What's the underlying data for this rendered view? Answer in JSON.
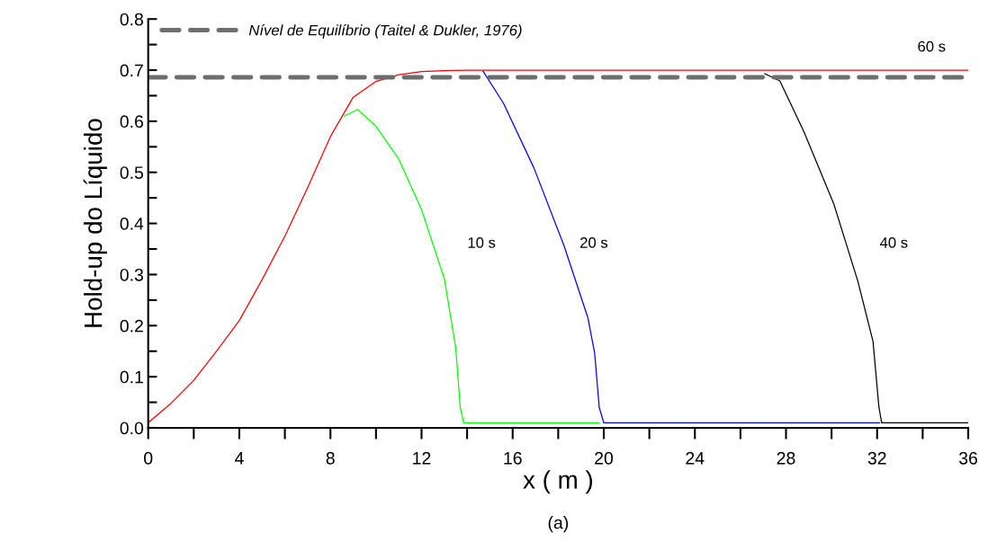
{
  "chart_data": {
    "type": "line",
    "xlabel": "x ( m )",
    "ylabel": "Hold-up do Líquido",
    "annotations": [
      "(a)"
    ],
    "xlim": [
      0,
      36
    ],
    "ylim": [
      0,
      0.8
    ],
    "xticks": [
      0,
      {
        "value": 2,
        "label": null
      },
      4,
      {
        "value": 6,
        "label": null
      },
      8,
      {
        "value": 10,
        "label": null
      },
      12,
      {
        "value": 14,
        "label": null
      },
      16,
      {
        "value": 18,
        "label": null
      },
      20,
      {
        "value": 22,
        "label": null
      },
      24,
      {
        "value": 26,
        "label": null
      },
      28,
      {
        "value": 30,
        "label": null
      },
      32,
      {
        "value": 34,
        "label": null
      },
      36
    ],
    "yticks": [
      {
        "value": 0,
        "label": "0.0"
      },
      {
        "value": 0.05,
        "label": null
      },
      {
        "value": 0.1,
        "label": "0.1"
      },
      {
        "value": 0.15,
        "label": null
      },
      {
        "value": 0.2,
        "label": "0.2"
      },
      {
        "value": 0.25,
        "label": null
      },
      {
        "value": 0.3,
        "label": "0.3"
      },
      {
        "value": 0.35,
        "label": null
      },
      {
        "value": 0.4,
        "label": "0.4"
      },
      {
        "value": 0.45,
        "label": null
      },
      {
        "value": 0.5,
        "label": "0.5"
      },
      {
        "value": 0.55,
        "label": null
      },
      {
        "value": 0.6,
        "label": "0.6"
      },
      {
        "value": 0.65,
        "label": null
      },
      {
        "value": 0.7,
        "label": "0.7"
      },
      {
        "value": 0.75,
        "label": null
      },
      {
        "value": 0.8,
        "label": "0.8"
      }
    ],
    "grid": false,
    "legend": "top left",
    "marker": "none",
    "line_style": "solid",
    "ref_lines": [
      {
        "axis": "y",
        "value": 0.686,
        "label": "Nível de Equilíbrio (Taitel & Dukler, 1976)",
        "color": "#6e6e6e",
        "line_style": "dashed"
      }
    ],
    "series": [
      {
        "name": "10 s",
        "color": "#00ff00",
        "x": [
          8.6,
          9.2,
          10,
          11,
          12,
          13,
          13.5,
          13.7,
          13.85,
          19.8
        ],
        "values": [
          0.61,
          0.623,
          0.59,
          0.526,
          0.427,
          0.292,
          0.157,
          0.04,
          0.01,
          0.01
        ]
      },
      {
        "name": "20 s",
        "color": "#0000ff",
        "x": [
          14.7,
          15.6,
          16.93,
          18.25,
          19.3,
          19.6,
          19.8,
          20.0,
          32.1
        ],
        "values": [
          0.698,
          0.635,
          0.509,
          0.357,
          0.216,
          0.146,
          0.04,
          0.01,
          0.01
        ]
      },
      {
        "name": "40 s",
        "color": "#000000",
        "x": [
          27.07,
          27.73,
          28.79,
          30.1,
          31.16,
          31.82,
          32.08,
          32.2,
          36
        ],
        "values": [
          0.693,
          0.679,
          0.579,
          0.438,
          0.286,
          0.169,
          0.04,
          0.01,
          0.01
        ]
      },
      {
        "name": "60 s",
        "color": "#ff0000",
        "x": [
          0,
          1,
          2,
          3,
          4,
          5,
          6,
          7,
          8,
          9,
          10,
          11,
          12,
          13,
          14,
          36
        ],
        "values": [
          0.01,
          0.048,
          0.093,
          0.15,
          0.21,
          0.29,
          0.375,
          0.47,
          0.57,
          0.647,
          0.678,
          0.691,
          0.697,
          0.699,
          0.7,
          0.7
        ]
      }
    ]
  }
}
